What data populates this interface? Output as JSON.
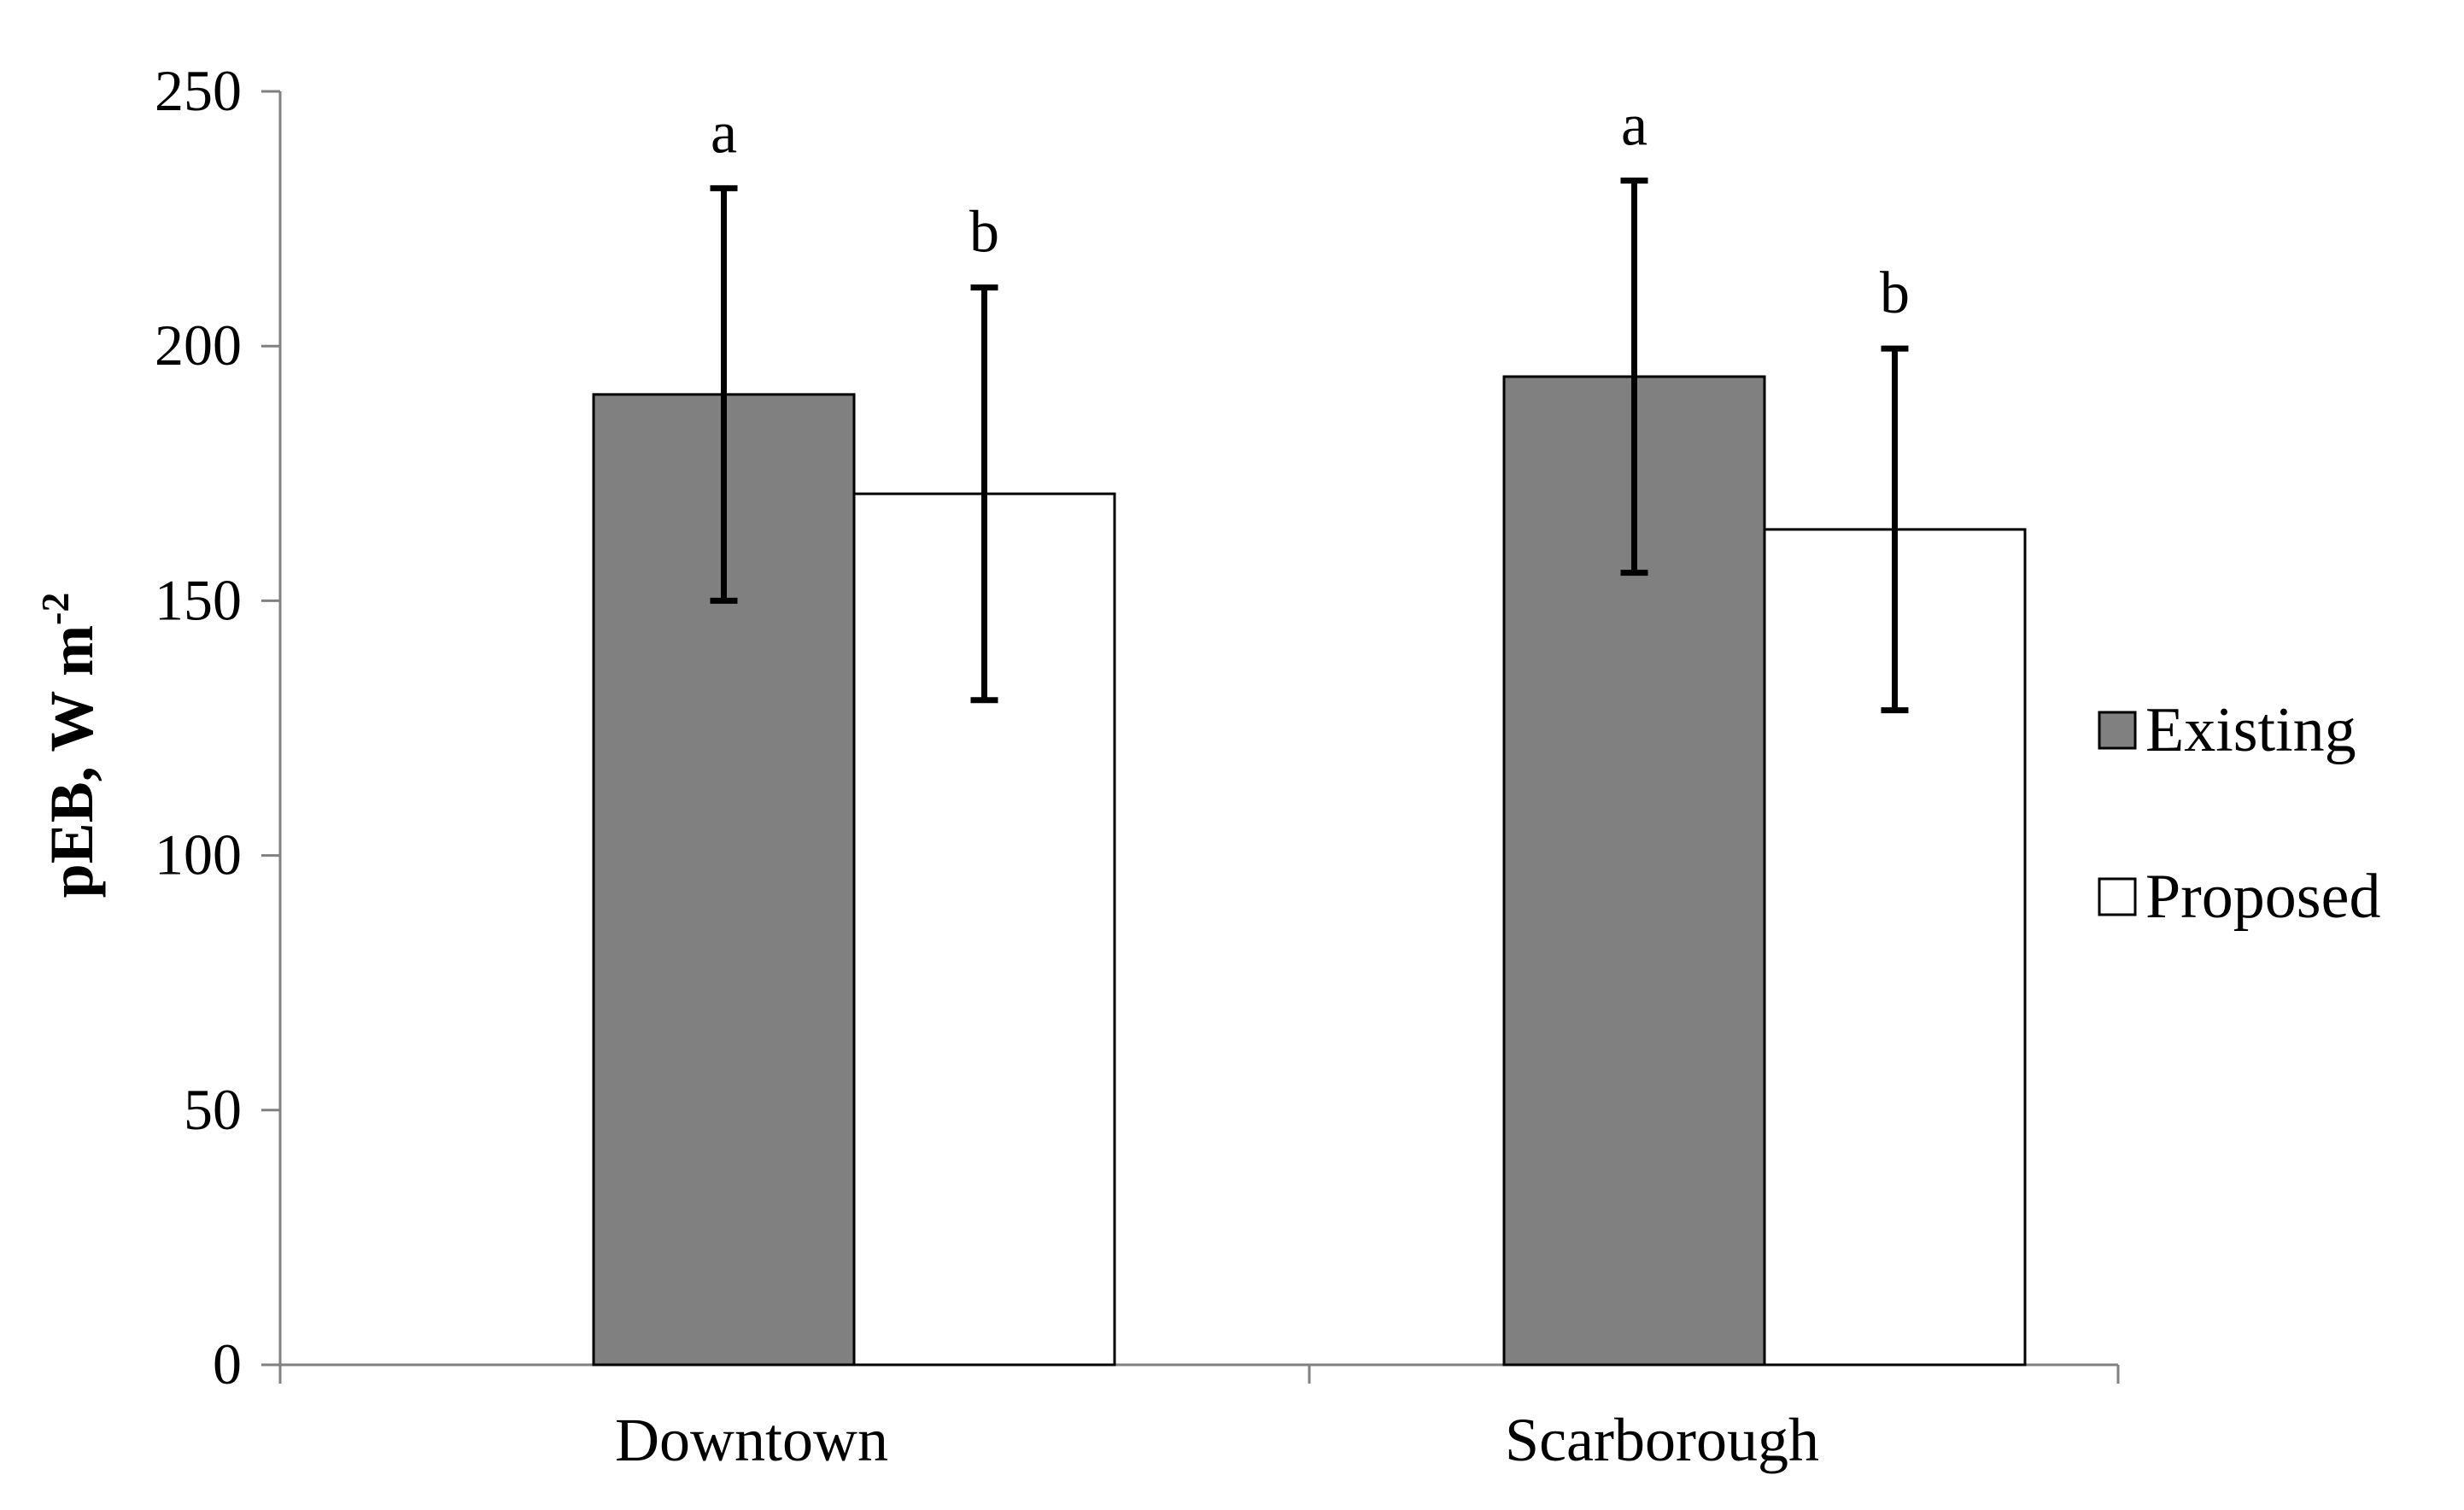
{
  "chart_data": {
    "type": "bar",
    "title": "",
    "xlabel": "",
    "ylabel": "pEB, W m",
    "ylabel_superscript": "-2",
    "ylim": [
      0,
      250
    ],
    "yticks": [
      0,
      50,
      100,
      150,
      200,
      250
    ],
    "ytick_labels": [
      "0",
      "50",
      "100",
      "150",
      "200",
      "250"
    ],
    "categories": [
      "Downtown",
      "Scarborough"
    ],
    "series": [
      {
        "name": "Existing",
        "color": "#808080",
        "values": [
          190.5,
          194
        ],
        "error": [
          40.5,
          38.5
        ],
        "significance": [
          "a",
          "a"
        ]
      },
      {
        "name": "Proposed",
        "color": "#ffffff",
        "values": [
          171,
          164
        ],
        "error": [
          40.5,
          35.5
        ],
        "significance": [
          "b",
          "b"
        ]
      }
    ],
    "legend_position": "right",
    "grid": false
  }
}
